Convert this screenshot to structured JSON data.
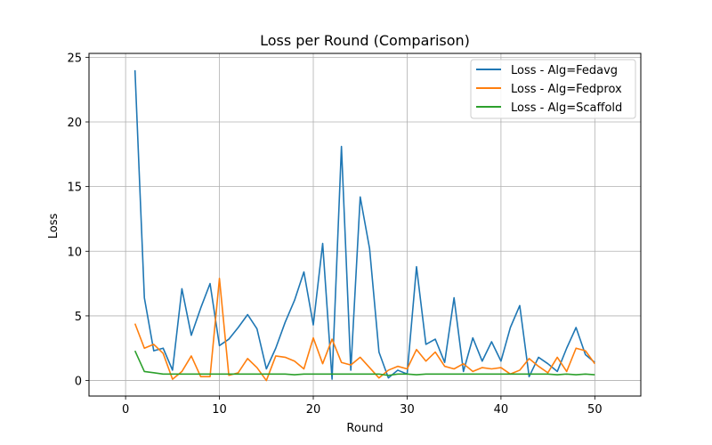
{
  "chart_data": {
    "type": "line",
    "title": "Loss per Round (Comparison)",
    "xlabel": "Round",
    "ylabel": "Loss",
    "xlim": [
      -3.9,
      54.9
    ],
    "ylim": [
      -1.2,
      25.3
    ],
    "xticks": [
      0,
      10,
      20,
      30,
      40,
      50
    ],
    "yticks": [
      0,
      5,
      10,
      15,
      20,
      25
    ],
    "grid": true,
    "legend_position": "top-right",
    "x": [
      1,
      2,
      3,
      4,
      5,
      6,
      7,
      8,
      9,
      10,
      11,
      12,
      13,
      14,
      15,
      16,
      17,
      18,
      19,
      20,
      21,
      22,
      23,
      24,
      25,
      26,
      27,
      28,
      29,
      30,
      31,
      32,
      33,
      34,
      35,
      36,
      37,
      38,
      39,
      40,
      41,
      42,
      43,
      44,
      45,
      46,
      47,
      48,
      49,
      50
    ],
    "series": [
      {
        "name": "Loss - Alg=Fedavg",
        "color": "#1f77b4",
        "values": [
          24.0,
          6.4,
          2.3,
          2.5,
          0.8,
          7.1,
          3.5,
          5.6,
          7.5,
          2.7,
          3.2,
          4.1,
          5.1,
          4.0,
          0.9,
          2.5,
          4.5,
          6.2,
          8.4,
          4.3,
          10.6,
          0.1,
          18.1,
          0.8,
          14.2,
          10.2,
          2.2,
          0.2,
          0.8,
          0.5,
          8.8,
          2.8,
          3.2,
          1.4,
          6.4,
          0.7,
          3.3,
          1.5,
          3.0,
          1.5,
          4.1,
          5.8,
          0.3,
          1.8,
          1.3,
          0.7,
          2.5,
          4.1,
          2.0,
          1.4
        ]
      },
      {
        "name": "Loss - Alg=Fedprox",
        "color": "#ff7f0e",
        "values": [
          4.4,
          2.5,
          2.8,
          2.1,
          0.1,
          0.7,
          1.9,
          0.3,
          0.3,
          7.9,
          0.4,
          0.6,
          1.7,
          1.0,
          0.0,
          1.9,
          1.8,
          1.5,
          0.9,
          3.3,
          1.3,
          3.2,
          1.4,
          1.2,
          1.8,
          1.0,
          0.2,
          0.8,
          1.1,
          0.9,
          2.4,
          1.5,
          2.2,
          1.1,
          0.9,
          1.3,
          0.7,
          1.0,
          0.9,
          1.0,
          0.5,
          0.8,
          1.7,
          1.1,
          0.6,
          1.8,
          0.7,
          2.5,
          2.3,
          1.3
        ]
      },
      {
        "name": "Loss - Alg=Scaffold",
        "color": "#2ca02c",
        "values": [
          2.3,
          0.7,
          0.6,
          0.5,
          0.5,
          0.5,
          0.5,
          0.5,
          0.5,
          0.5,
          0.5,
          0.5,
          0.5,
          0.5,
          0.5,
          0.5,
          0.5,
          0.45,
          0.5,
          0.5,
          0.5,
          0.5,
          0.5,
          0.5,
          0.5,
          0.5,
          0.5,
          0.4,
          0.5,
          0.5,
          0.45,
          0.5,
          0.5,
          0.5,
          0.5,
          0.5,
          0.5,
          0.5,
          0.5,
          0.5,
          0.5,
          0.5,
          0.5,
          0.5,
          0.5,
          0.45,
          0.5,
          0.45,
          0.5,
          0.45
        ]
      }
    ]
  }
}
